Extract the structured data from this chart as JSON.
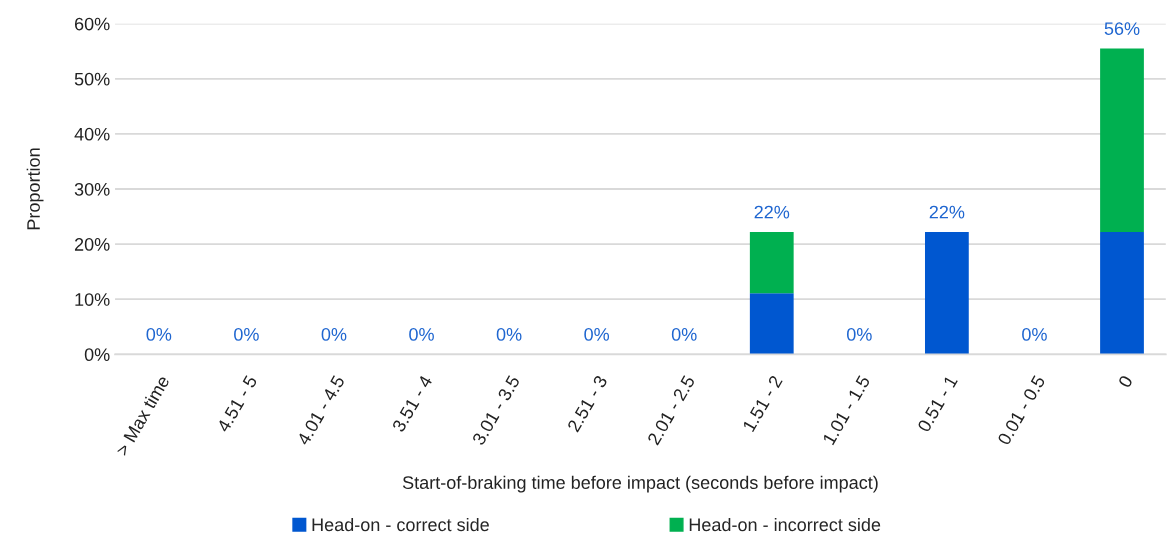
{
  "chart_data": {
    "type": "bar",
    "stacked": true,
    "xlabel": "Start-of-braking time before impact (seconds before impact)",
    "ylabel": "Proportion",
    "categories": [
      "> Max time",
      "4.51 - 5",
      "4.01 - 4.5",
      "3.51 - 4",
      "3.01 - 3.5",
      "2.51 - 3",
      "2.01 - 2.5",
      "1.51 - 2",
      "1.01 - 1.5",
      "0.51 - 1",
      "0.01 - 0.5",
      "0"
    ],
    "series": [
      {
        "name": "Head-on - correct side",
        "color": "#0057d0",
        "values": [
          0,
          0,
          0,
          0,
          0,
          0,
          0,
          11.1,
          0,
          22.2,
          0,
          22.2
        ]
      },
      {
        "name": "Head-on - incorrect side",
        "color": "#00b050",
        "values": [
          0,
          0,
          0,
          0,
          0,
          0,
          0,
          11.1,
          0,
          0,
          0,
          33.3
        ]
      }
    ],
    "totals": [
      "0%",
      "0%",
      "0%",
      "0%",
      "0%",
      "0%",
      "0%",
      "22%",
      "0%",
      "22%",
      "0%",
      "56%"
    ],
    "ylim": [
      0,
      60
    ],
    "yticks": [
      {
        "value": 0,
        "label": "0%"
      },
      {
        "value": 10,
        "label": "10%"
      },
      {
        "value": 20,
        "label": "20%"
      },
      {
        "value": 30,
        "label": "30%"
      },
      {
        "value": 40,
        "label": "40%"
      },
      {
        "value": 50,
        "label": "50%"
      },
      {
        "value": 60,
        "label": "60%"
      }
    ],
    "grid": "y",
    "legend": "bottom"
  }
}
